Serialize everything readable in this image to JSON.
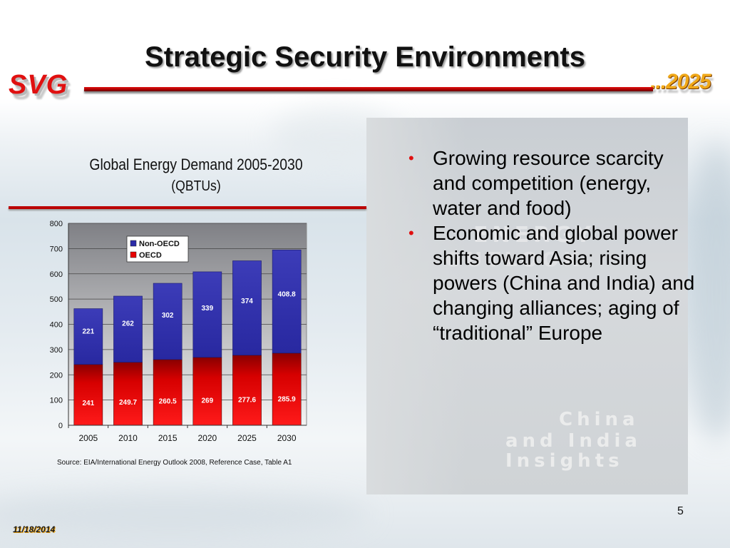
{
  "slide": {
    "title": "Strategic Security Environments",
    "logo_left": "SVG",
    "logo_right": "...2025",
    "page_number": "5",
    "date": "11/18/2014"
  },
  "bullets": [
    "Growing resource scarcity and competition (energy, water and food)",
    "Economic and global power shifts toward Asia; rising powers (China and India) and changing alliances; aging of “traditional” Europe"
  ],
  "chart_header": {
    "title": "Global Energy Demand 2005-2030",
    "subtitle": "(QBTUs)"
  },
  "source": "Source: EIA/International Energy Outlook 2008, Reference Case, Table A1",
  "colors": {
    "oecd": "#e80000",
    "non_oecd": "#2b2ba8",
    "title_rule": "#bb0000"
  },
  "chart_data": {
    "type": "bar",
    "stacked": true,
    "categories": [
      "2005",
      "2010",
      "2015",
      "2020",
      "2025",
      "2030"
    ],
    "series": [
      {
        "name": "OECD",
        "values": [
          241,
          249.7,
          260.5,
          269,
          277.6,
          285.9
        ]
      },
      {
        "name": "Non-OECD",
        "values": [
          221,
          262,
          302,
          339,
          374,
          408.8
        ]
      }
    ],
    "ylim": [
      0,
      800
    ],
    "yticks": [
      0,
      100,
      200,
      300,
      400,
      500,
      600,
      700,
      800
    ],
    "grid": true,
    "legend": "top-center"
  }
}
